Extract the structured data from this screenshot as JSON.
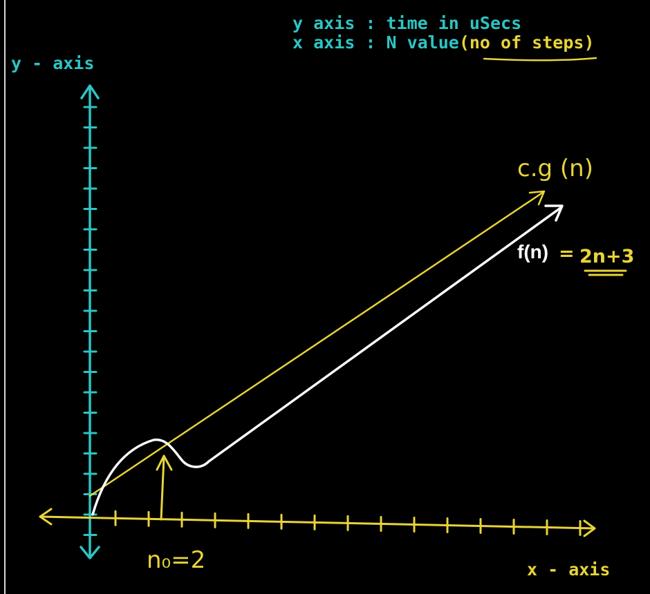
{
  "notes": {
    "y_axis_note": "y axis : time in uSecs",
    "x_axis_note_prefix": "x axis : N value",
    "x_axis_note_paren": "(no of steps)"
  },
  "axes": {
    "y_label": "y - axis",
    "x_label": "x - axis"
  },
  "curves": {
    "cg_label": "c.g (n)",
    "fn_label": "f(n)",
    "fn_equals": "=",
    "fn_expression": "2n+3"
  },
  "marker": {
    "n0_label": "n₀=2"
  },
  "colors": {
    "background": "#000000",
    "axis": "#2ec4c4",
    "note": "#2ec4c4",
    "yellow": "#e8d43a",
    "white": "#ffffff"
  }
}
